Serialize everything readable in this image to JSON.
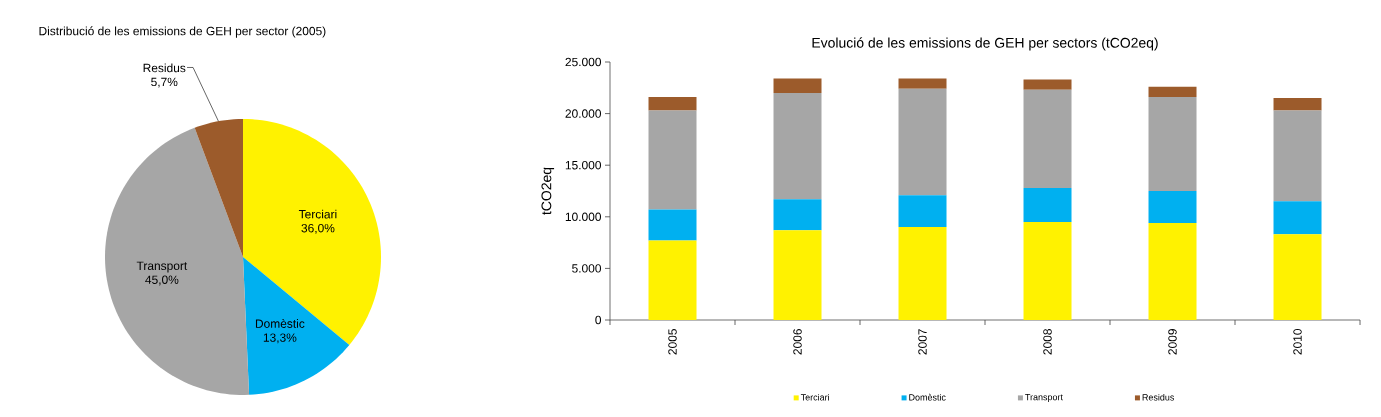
{
  "chart_data": [
    {
      "type": "pie",
      "title": "Distribució de les emissions de GEH per sector (2005)",
      "categories": [
        "Terciari",
        "Domèstic",
        "Transport",
        "Residus"
      ],
      "values": [
        36.0,
        13.3,
        45.0,
        5.7
      ],
      "value_labels": [
        "36,0%",
        "13,3%",
        "45,0%",
        "5,7%"
      ],
      "colors": [
        "#fff200",
        "#00b0f0",
        "#a6a6a6",
        "#9c5b2b"
      ]
    },
    {
      "type": "bar",
      "stacked": true,
      "title": "Evolució de les emissions de GEH per sectors (tCO2eq)",
      "ylabel": "tCO2eq",
      "categories": [
        "2005",
        "2006",
        "2007",
        "2008",
        "2009",
        "2010"
      ],
      "series": [
        {
          "name": "Terciari",
          "color": "#fff200",
          "values": [
            7700,
            8700,
            9000,
            9500,
            9400,
            8300
          ]
        },
        {
          "name": "Domèstic",
          "color": "#00b0f0",
          "values": [
            3000,
            3000,
            3100,
            3300,
            3100,
            3200
          ]
        },
        {
          "name": "Transport",
          "color": "#a6a6a6",
          "values": [
            9600,
            10300,
            10300,
            9500,
            9100,
            8800
          ]
        },
        {
          "name": "Residus",
          "color": "#9c5b2b",
          "values": [
            1300,
            1400,
            1000,
            1000,
            1000,
            1200
          ]
        }
      ],
      "ylim": [
        0,
        25000
      ],
      "yticks": [
        0,
        {
          "value": 5000,
          "label": "5.000"
        },
        {
          "value": 10000,
          "label": "10.000"
        },
        {
          "value": 15000,
          "label": "15.000"
        },
        {
          "value": 20000,
          "label": "20.000"
        },
        {
          "value": 25000,
          "label": "25.000"
        }
      ],
      "legend": "bottom"
    }
  ]
}
